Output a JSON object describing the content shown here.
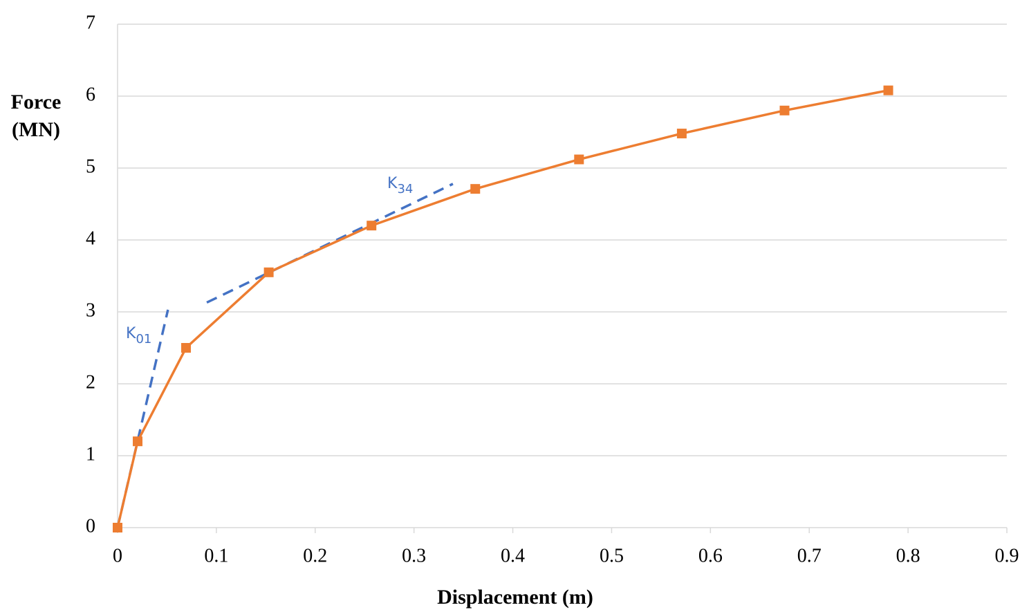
{
  "chart_data": {
    "type": "line",
    "xlabel": "Displacement (m)",
    "ylabel": [
      "Force",
      "(MN)"
    ],
    "xlim": [
      0,
      0.9
    ],
    "xticks": [
      0,
      0.1,
      0.2,
      0.3,
      0.4,
      0.5,
      0.6,
      0.7,
      0.8,
      0.9
    ],
    "ylim": [
      0,
      7
    ],
    "yticks": [
      0,
      1,
      2,
      3,
      4,
      5,
      6,
      7
    ],
    "grid": true,
    "series": [
      {
        "color": "#ed7d31",
        "marker": "square",
        "x": [
          0,
          0.0203,
          0.0693,
          0.153,
          0.257,
          0.362,
          0.467,
          0.571,
          0.675,
          0.78
        ],
        "values": [
          0,
          1.2,
          2.5,
          3.55,
          4.2,
          4.71,
          5.12,
          5.48,
          5.8,
          6.08
        ]
      }
    ],
    "lines": [
      {
        "color": "#4472c4",
        "dashed": true,
        "x": [
          0,
          0.051
        ],
        "values": [
          0,
          3.03
        ]
      },
      {
        "color": "#4472c4",
        "dashed": true,
        "x": [
          0.0903,
          0.3394
        ],
        "values": [
          3.13,
          4.78
        ]
      }
    ],
    "annotations": [
      {
        "text": "K",
        "subscript": "01"
      },
      {
        "text": "K",
        "subscript": "34"
      }
    ]
  }
}
